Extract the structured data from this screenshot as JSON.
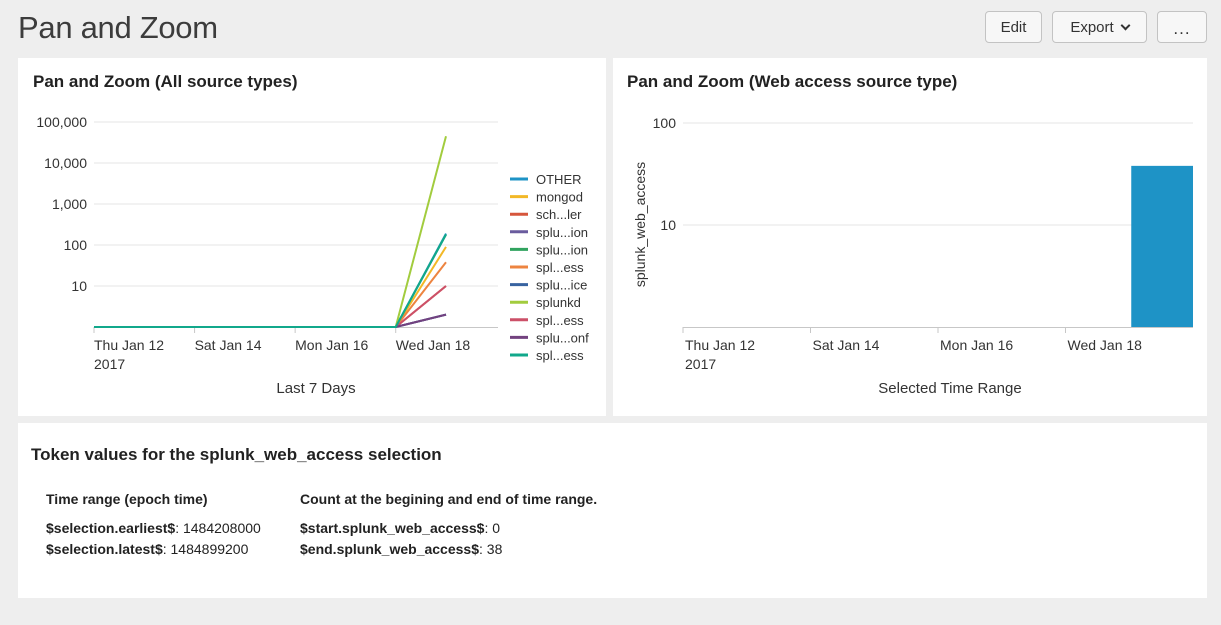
{
  "header": {
    "title": "Pan and Zoom",
    "edit_label": "Edit",
    "export_label": "Export",
    "more_label": "..."
  },
  "panels": {
    "all_sources": {
      "title": "Pan and Zoom (All source types)",
      "x_axis_title": "Last 7 Days"
    },
    "web_access": {
      "title": "Pan and Zoom (Web access source type)",
      "x_axis_title": "Selected Time Range",
      "y_axis_title": "splunk_web_access"
    },
    "tokens": {
      "title": "Token values for the splunk_web_access selection",
      "time_range_heading": "Time range (epoch time)",
      "count_heading": "Count at the begining and end of time range.",
      "earliest_label": "$selection.earliest$",
      "earliest_value": ": 1484208000",
      "latest_label": "$selection.latest$",
      "latest_value": ": 1484899200",
      "start_label": "$start.splunk_web_access$",
      "start_value": ": 0",
      "end_label": "$end.splunk_web_access$",
      "end_value": ": 38"
    }
  },
  "chart_data": [
    {
      "type": "line",
      "y_scale": "log",
      "y_ticks": [
        "100,000",
        "10,000",
        "1,000",
        "100",
        "10"
      ],
      "x_ticks": [
        "Thu Jan 12",
        "Sat Jan 14",
        "Mon Jan 16",
        "Wed Jan 18"
      ],
      "x_year_label": "2017",
      "xlabel": "Last 7 Days",
      "x": [
        "Jan 12",
        "Jan 13",
        "Jan 14",
        "Jan 15",
        "Jan 16",
        "Jan 17",
        "Jan 18",
        "Jan 19"
      ],
      "legend_position": "right",
      "series": [
        {
          "name": "OTHER",
          "color": "#1e93c6",
          "values": [
            1,
            1,
            1,
            1,
            1,
            1,
            1,
            190
          ]
        },
        {
          "name": "mongod",
          "color": "#f2b827",
          "values": [
            1,
            1,
            1,
            1,
            1,
            1,
            1,
            90
          ]
        },
        {
          "name": "sch...ler",
          "color": "#d6563c",
          "values": [
            1,
            1,
            1,
            1,
            1,
            1,
            1,
            10
          ]
        },
        {
          "name": "splu...ion",
          "color": "#6a5c9e",
          "values": [
            1,
            1,
            1,
            1,
            1,
            1,
            1,
            2
          ]
        },
        {
          "name": "splu...ion",
          "color": "#31a35f",
          "values": [
            1,
            1,
            1,
            1,
            1,
            1,
            1,
            180
          ]
        },
        {
          "name": "spl...ess",
          "color": "#ed8440",
          "values": [
            1,
            1,
            1,
            1,
            1,
            1,
            1,
            38
          ]
        },
        {
          "name": "splu...ice",
          "color": "#3863a0",
          "values": [
            1,
            1,
            1,
            1,
            1,
            1,
            1,
            2
          ]
        },
        {
          "name": "splunkd",
          "color": "#a2cc3e",
          "values": [
            1,
            1,
            1,
            1,
            1,
            1,
            1,
            45000
          ]
        },
        {
          "name": "spl...ess",
          "color": "#cc5068",
          "values": [
            1,
            1,
            1,
            1,
            1,
            1,
            1,
            10
          ]
        },
        {
          "name": "splu...onf",
          "color": "#73427f",
          "values": [
            1,
            1,
            1,
            1,
            1,
            1,
            1,
            2
          ]
        },
        {
          "name": "spl...ess",
          "color": "#11a88b",
          "values": [
            1,
            1,
            1,
            1,
            1,
            1,
            1,
            180
          ]
        }
      ]
    },
    {
      "type": "bar",
      "y_scale": "log",
      "y_ticks": [
        "100",
        "10"
      ],
      "x_ticks": [
        "Thu Jan 12",
        "Sat Jan 14",
        "Mon Jan 16",
        "Wed Jan 18"
      ],
      "x_year_label": "2017",
      "xlabel": "Selected Time Range",
      "ylabel": "splunk_web_access",
      "categories": [
        "Jan 12",
        "Jan 13",
        "Jan 14",
        "Jan 15",
        "Jan 16",
        "Jan 17",
        "Jan 18",
        "Jan 19"
      ],
      "series": [
        {
          "color": "#1e93c6",
          "values": [
            0,
            0,
            0,
            0,
            0,
            0,
            0,
            38
          ]
        }
      ]
    }
  ]
}
